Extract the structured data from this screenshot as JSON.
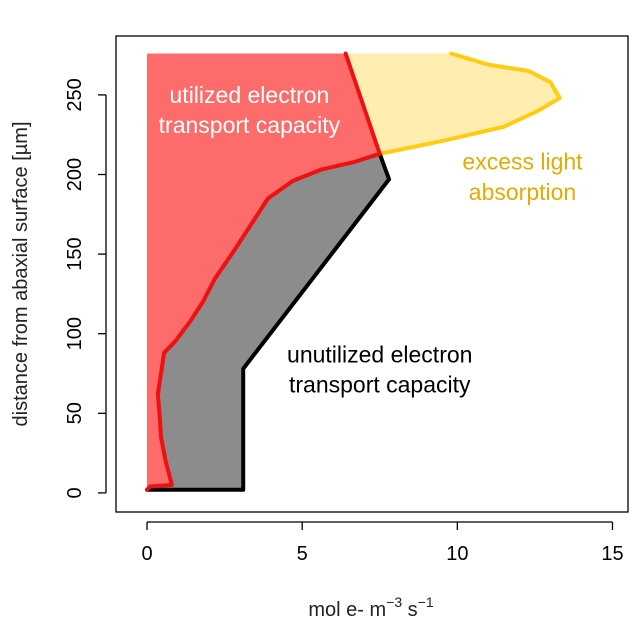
{
  "chart_data": {
    "type": "area",
    "title": "",
    "xlabel": {
      "main": "mol e-  m",
      "sup1": "−3",
      "mid": " s",
      "sup2": "−1"
    },
    "ylabel": "distance from abaxial surface [µm]",
    "xlim": [
      -1,
      15.5
    ],
    "ylim": [
      -12,
      287
    ],
    "xticks": [
      "0",
      "5",
      "10",
      "15"
    ],
    "xtick_values": [
      0,
      5,
      10,
      15
    ],
    "yticks": [
      "0",
      "50",
      "100",
      "150",
      "200",
      "250"
    ],
    "ytick_values": [
      0,
      50,
      100,
      150,
      200,
      250
    ],
    "grid": false,
    "series": [
      {
        "key": "utilized",
        "points": [
          [
            0,
            2
          ],
          [
            0.1,
            4
          ],
          [
            0.8,
            5
          ],
          [
            0.6,
            20
          ],
          [
            0.45,
            35
          ],
          [
            0.4,
            50
          ],
          [
            0.35,
            62
          ],
          [
            0.45,
            75
          ],
          [
            0.55,
            88
          ],
          [
            0.9,
            95
          ],
          [
            1.4,
            108
          ],
          [
            1.8,
            120
          ],
          [
            2.2,
            135
          ],
          [
            2.8,
            152
          ],
          [
            3.4,
            170
          ],
          [
            3.9,
            185
          ],
          [
            4.7,
            196
          ],
          [
            5.6,
            203
          ],
          [
            6.7,
            208
          ],
          [
            7.5,
            213
          ],
          [
            6.4,
            276
          ]
        ],
        "color": "#ee1111",
        "fill": "#fd6b6b"
      },
      {
        "key": "unutilized",
        "points": [
          [
            0,
            2
          ],
          [
            3.1,
            2
          ],
          [
            3.1,
            78
          ],
          [
            7.8,
            197
          ],
          [
            7.5,
            213
          ]
        ],
        "color": "#000000",
        "fill": "#8c8c8c"
      },
      {
        "key": "light",
        "points": [
          [
            7.5,
            213
          ],
          [
            9.5,
            221
          ],
          [
            11.5,
            230
          ],
          [
            12.6,
            240
          ],
          [
            13.3,
            248
          ],
          [
            13.0,
            258
          ],
          [
            12.3,
            265
          ],
          [
            11.0,
            269
          ],
          [
            9.8,
            276
          ]
        ],
        "color": "#ffcc11",
        "fill": "#ffeeb0"
      }
    ],
    "annotations": [
      {
        "text": "utilized electron",
        "color": "#ffffff",
        "x": 3.3,
        "y": 245
      },
      {
        "text": "transport capacity",
        "color": "#ffffff",
        "x": 3.3,
        "y": 226
      },
      {
        "text": "excess light",
        "color": "#e6aa00",
        "x": 12.1,
        "y": 203
      },
      {
        "text": "absorption",
        "color": "#e6aa00",
        "x": 12.1,
        "y": 184
      },
      {
        "text": "unutilized electron",
        "color": "#000000",
        "x": 7.5,
        "y": 82
      },
      {
        "text": "transport capacity",
        "color": "#000000",
        "x": 7.5,
        "y": 63
      }
    ]
  }
}
